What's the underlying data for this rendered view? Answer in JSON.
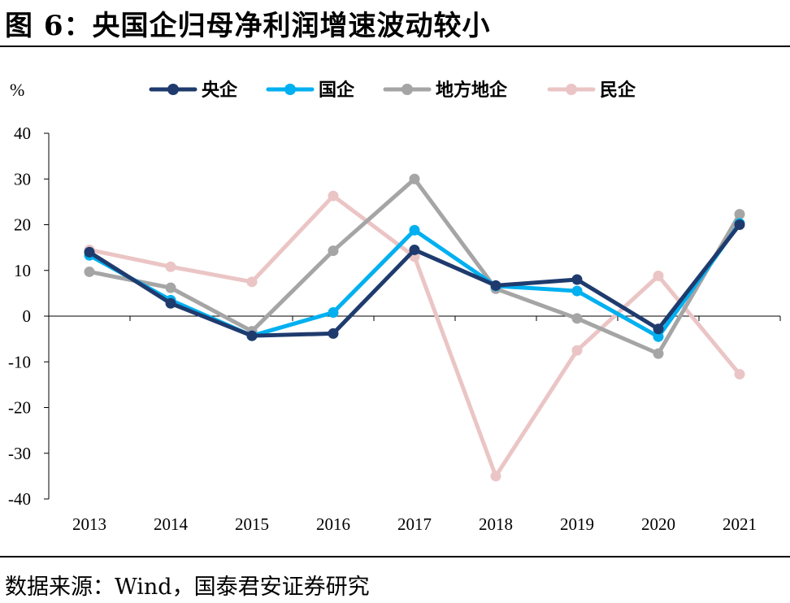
{
  "title": "图 6：央国企归母净利润增速波动较小",
  "source": "数据来源：Wind，国泰君安证券研究",
  "chart_data": {
    "type": "line",
    "ylabel": "%",
    "ylim": [
      -40,
      40
    ],
    "yticks": [
      40,
      30,
      20,
      10,
      0,
      -10,
      -20,
      -30,
      -40
    ],
    "categories": [
      "2013",
      "2014",
      "2015",
      "2016",
      "2017",
      "2018",
      "2019",
      "2020",
      "2021"
    ],
    "legend_position": "top",
    "grid": false,
    "series": [
      {
        "name": "央企",
        "color": "#1F3B6E",
        "values": [
          14.0,
          2.8,
          -4.3,
          -3.8,
          14.5,
          6.7,
          8.0,
          -2.8,
          20.0
        ]
      },
      {
        "name": "国企",
        "color": "#00B0F0",
        "values": [
          13.3,
          3.5,
          -4.3,
          0.8,
          18.8,
          6.6,
          5.5,
          -4.5,
          20.3
        ]
      },
      {
        "name": "地方地企",
        "color": "#A5A5A5",
        "values": [
          9.7,
          6.2,
          -3.3,
          14.3,
          30.0,
          6.0,
          -0.5,
          -8.2,
          22.3
        ]
      },
      {
        "name": "民企",
        "color": "#EBC5C5",
        "values": [
          14.5,
          10.8,
          7.5,
          26.3,
          13.0,
          -35.0,
          -7.5,
          8.8,
          -12.7
        ]
      }
    ]
  }
}
